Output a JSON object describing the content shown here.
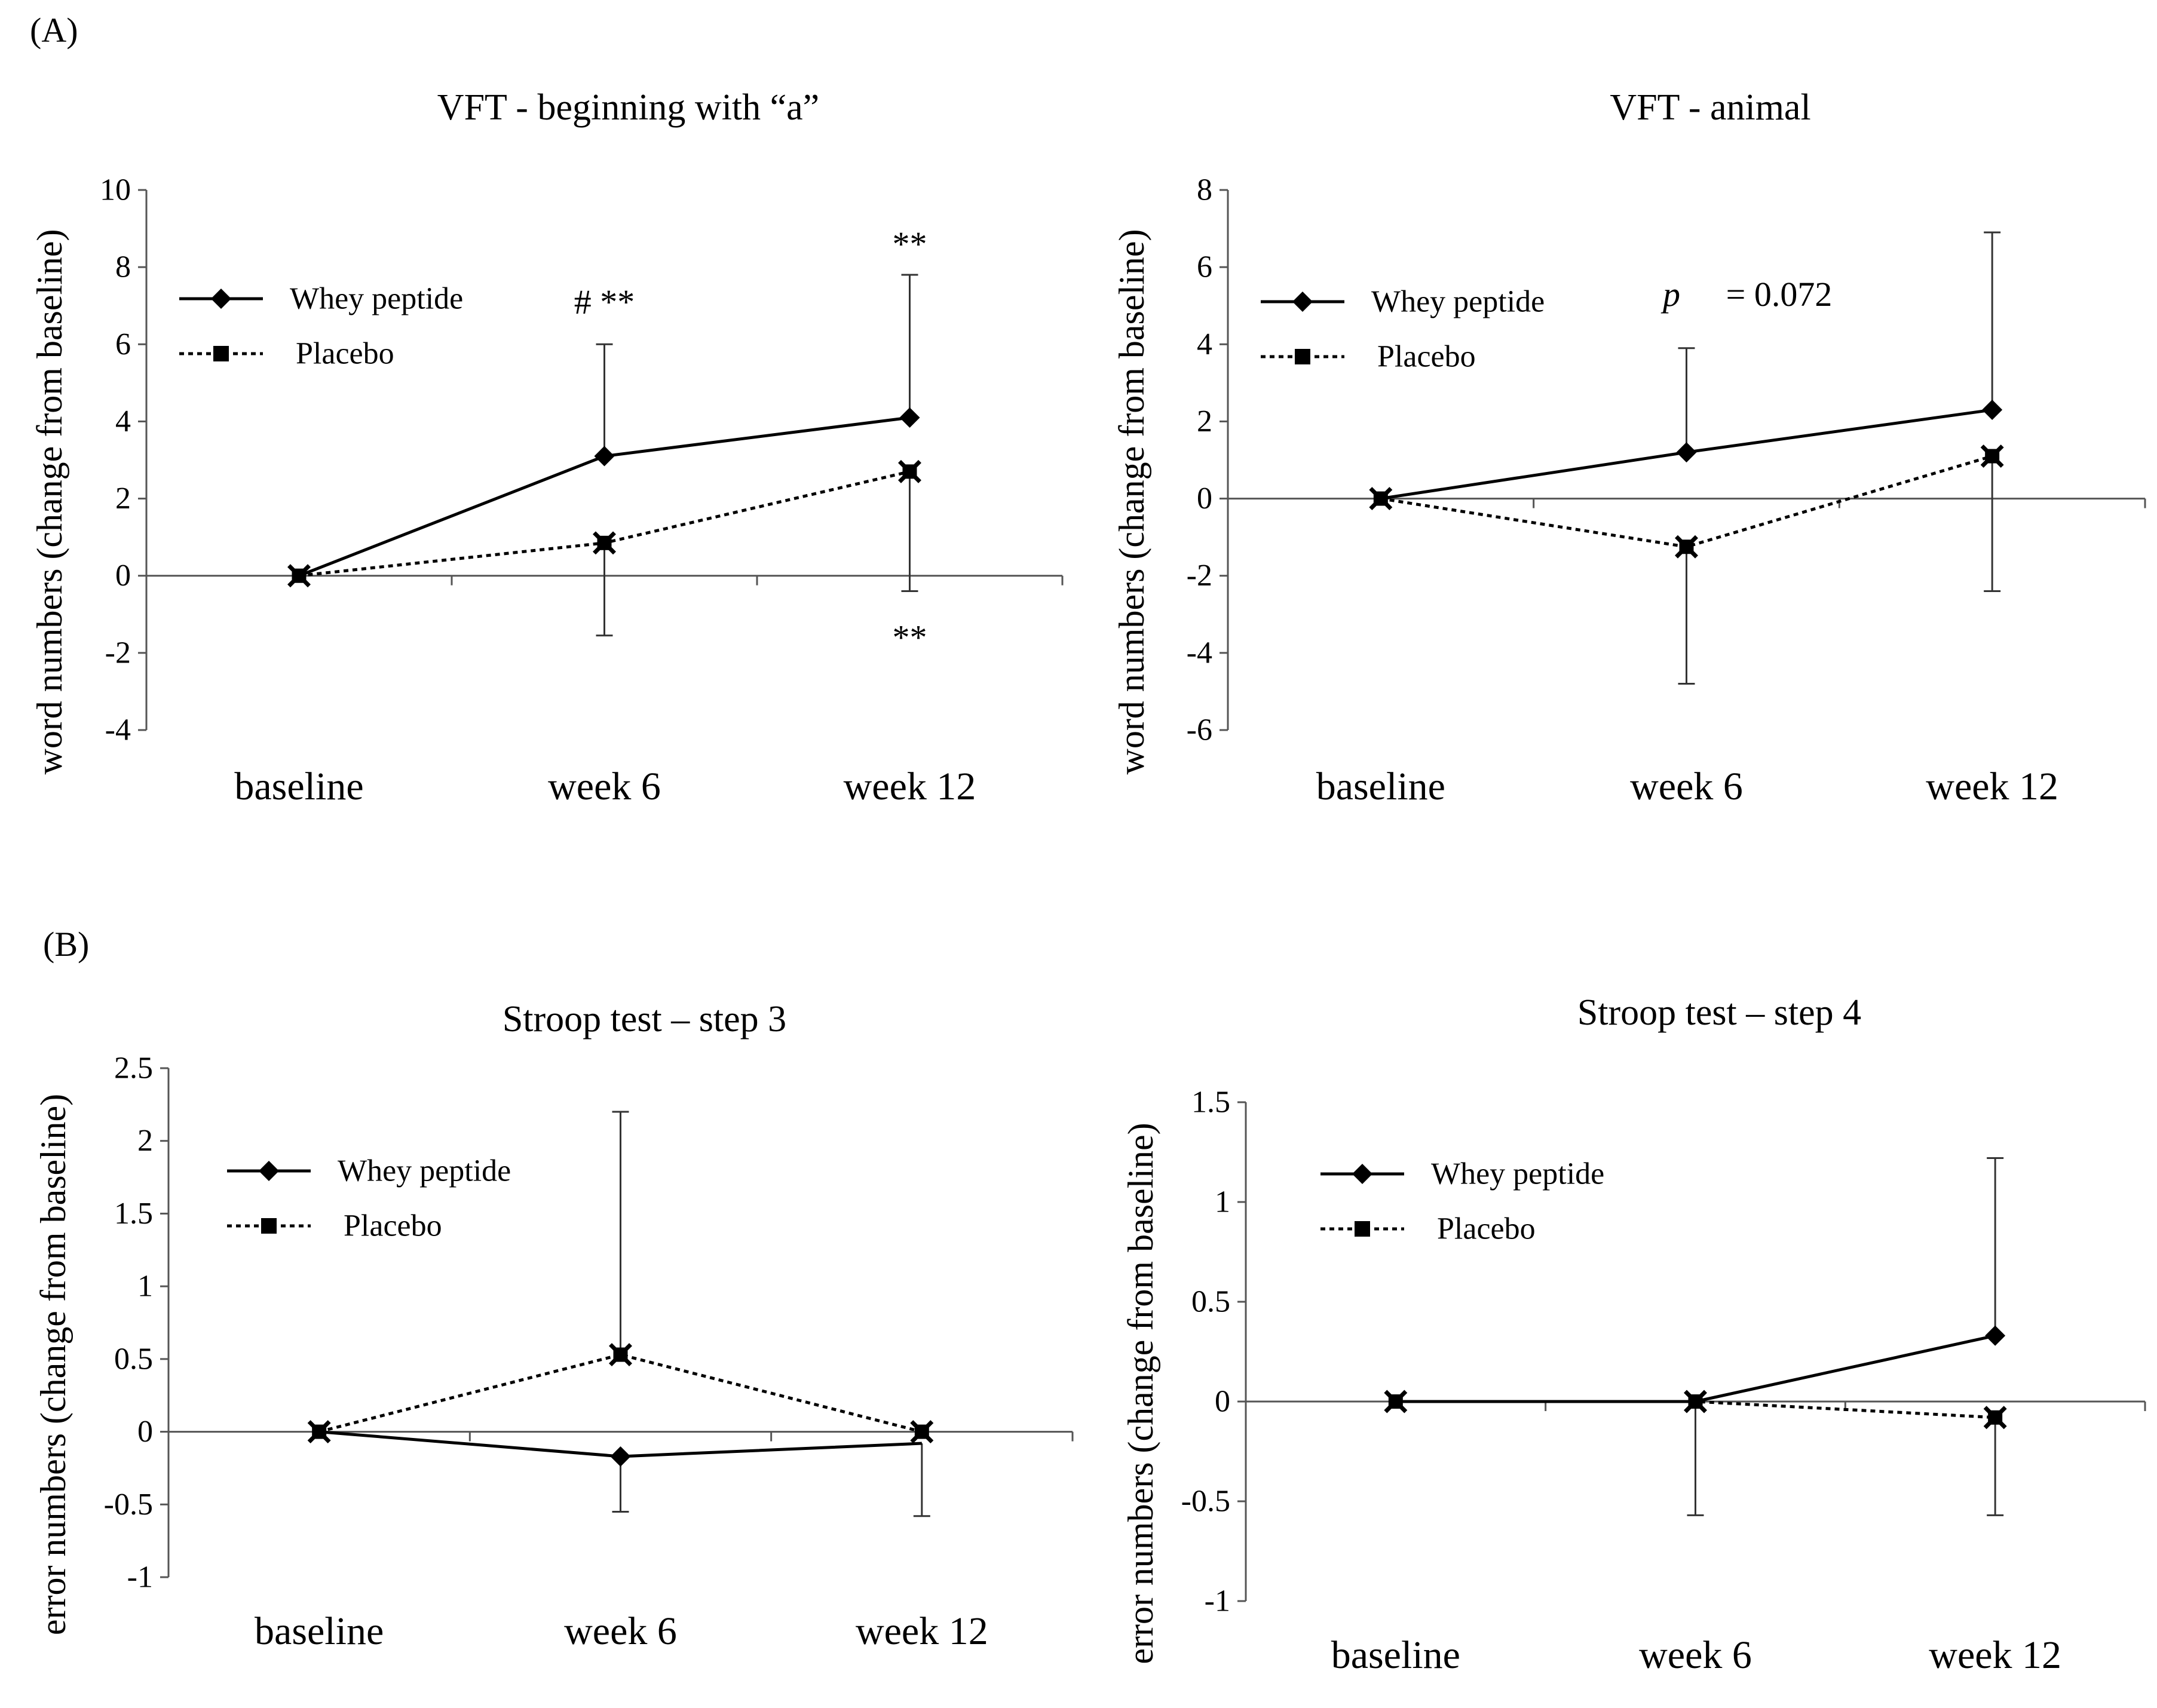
{
  "figure": {
    "panel_a_label": "(A)",
    "panel_b_label": "(B)"
  },
  "chart_data": [
    {
      "type": "line",
      "title": "VFT - beginning with “a”",
      "xlabel": "",
      "ylabel": "word numbers (change from baseline)",
      "categories": [
        "baseline",
        "week 6",
        "week 12"
      ],
      "ylim": [
        -4,
        10
      ],
      "yticks": [
        -4,
        -2,
        0,
        2,
        4,
        6,
        8,
        10
      ],
      "ytick_labels": [
        "-4",
        "-2",
        "0",
        "2",
        "4",
        "6",
        "8",
        "10"
      ],
      "grid": false,
      "legend_position": "top-left",
      "series": [
        {
          "name": "Whey peptide",
          "values": [
            0,
            3.1,
            4.1
          ],
          "err": [
            0,
            2.9,
            3.7
          ],
          "err_dir": "up",
          "style": "solid",
          "marker": "diamond"
        },
        {
          "name": "Placebo",
          "values": [
            0,
            0.85,
            2.7
          ],
          "err": [
            0,
            2.4,
            3.1
          ],
          "err_dir": "down",
          "style": "dotted",
          "marker": "square"
        }
      ],
      "annotations": [
        {
          "text": "# **",
          "cat": 1,
          "y": 7.1,
          "style": "normal"
        },
        {
          "text": "**",
          "cat": 2,
          "y": 8.6,
          "style": "normal"
        },
        {
          "text": "**",
          "cat": 2,
          "y": -1.6,
          "style": "normal"
        }
      ]
    },
    {
      "type": "line",
      "title": "VFT - animal",
      "xlabel": "",
      "ylabel": "word numbers (change from baseline)",
      "categories": [
        "baseline",
        "week 6",
        "week 12"
      ],
      "ylim": [
        -6,
        8
      ],
      "yticks": [
        -6,
        -4,
        -2,
        0,
        2,
        4,
        6,
        8
      ],
      "ytick_labels": [
        "-6",
        "-4",
        "-2",
        "0",
        "2",
        "4",
        "6",
        "8"
      ],
      "grid": false,
      "legend_position": "top-left",
      "series": [
        {
          "name": "Whey peptide",
          "values": [
            0,
            1.2,
            2.3
          ],
          "err": [
            0,
            2.7,
            4.6
          ],
          "err_dir": "up",
          "style": "solid",
          "marker": "diamond"
        },
        {
          "name": "Placebo",
          "values": [
            0,
            -1.25,
            1.1
          ],
          "err": [
            0,
            3.55,
            3.5
          ],
          "err_dir": "down",
          "style": "dotted",
          "marker": "square"
        }
      ],
      "annotations": [
        {
          "text": "p",
          "cat": 1,
          "y": 5.3,
          "style": "italic",
          "offset": -25
        },
        {
          "text": "= 0.072",
          "cat": 1,
          "y": 5.3,
          "style": "normal",
          "offset": 155
        }
      ]
    },
    {
      "type": "line",
      "title": "Stroop test – step 3",
      "xlabel": "",
      "ylabel": "error numbers (change from baseline)",
      "categories": [
        "baseline",
        "week 6",
        "week 12"
      ],
      "ylim": [
        -1,
        2.5
      ],
      "yticks": [
        -1,
        -0.5,
        0,
        0.5,
        1,
        1.5,
        2,
        2.5
      ],
      "ytick_labels": [
        "-1",
        "-0.5",
        "0",
        "0.5",
        "1",
        "1.5",
        "2",
        "2.5"
      ],
      "grid": false,
      "legend_position": "top-left",
      "series": [
        {
          "name": "Whey peptide",
          "values": [
            0,
            -0.17,
            -0.08
          ],
          "err": [
            0,
            0.38,
            0.5
          ],
          "err_dir": "down",
          "style": "solid",
          "marker": "diamond"
        },
        {
          "name": "Placebo",
          "values": [
            0,
            0.53,
            0
          ],
          "err": [
            0,
            1.67,
            0
          ],
          "err_dir": "up",
          "style": "dotted",
          "marker": "square"
        }
      ],
      "annotations": []
    },
    {
      "type": "line",
      "title": "Stroop test – step 4",
      "xlabel": "",
      "ylabel": "error numbers (change from baseline)",
      "categories": [
        "baseline",
        "week 6",
        "week 12"
      ],
      "ylim": [
        -1,
        1.5
      ],
      "yticks": [
        -1,
        -0.5,
        0,
        0.5,
        1,
        1.5
      ],
      "ytick_labels": [
        "-1",
        "-0.5",
        "0",
        "0.5",
        "1",
        "1.5"
      ],
      "grid": false,
      "legend_position": "top-left",
      "series": [
        {
          "name": "Whey peptide",
          "values": [
            0,
            0,
            0.33
          ],
          "err": [
            0,
            0,
            0.89
          ],
          "err_dir": "up",
          "style": "solid",
          "marker": "diamond"
        },
        {
          "name": "Placebo",
          "values": [
            0,
            0,
            -0.08
          ],
          "err": [
            0,
            0.57,
            0.49
          ],
          "err_dir": "down",
          "style": "dotted",
          "marker": "square"
        }
      ],
      "annotations": []
    }
  ]
}
